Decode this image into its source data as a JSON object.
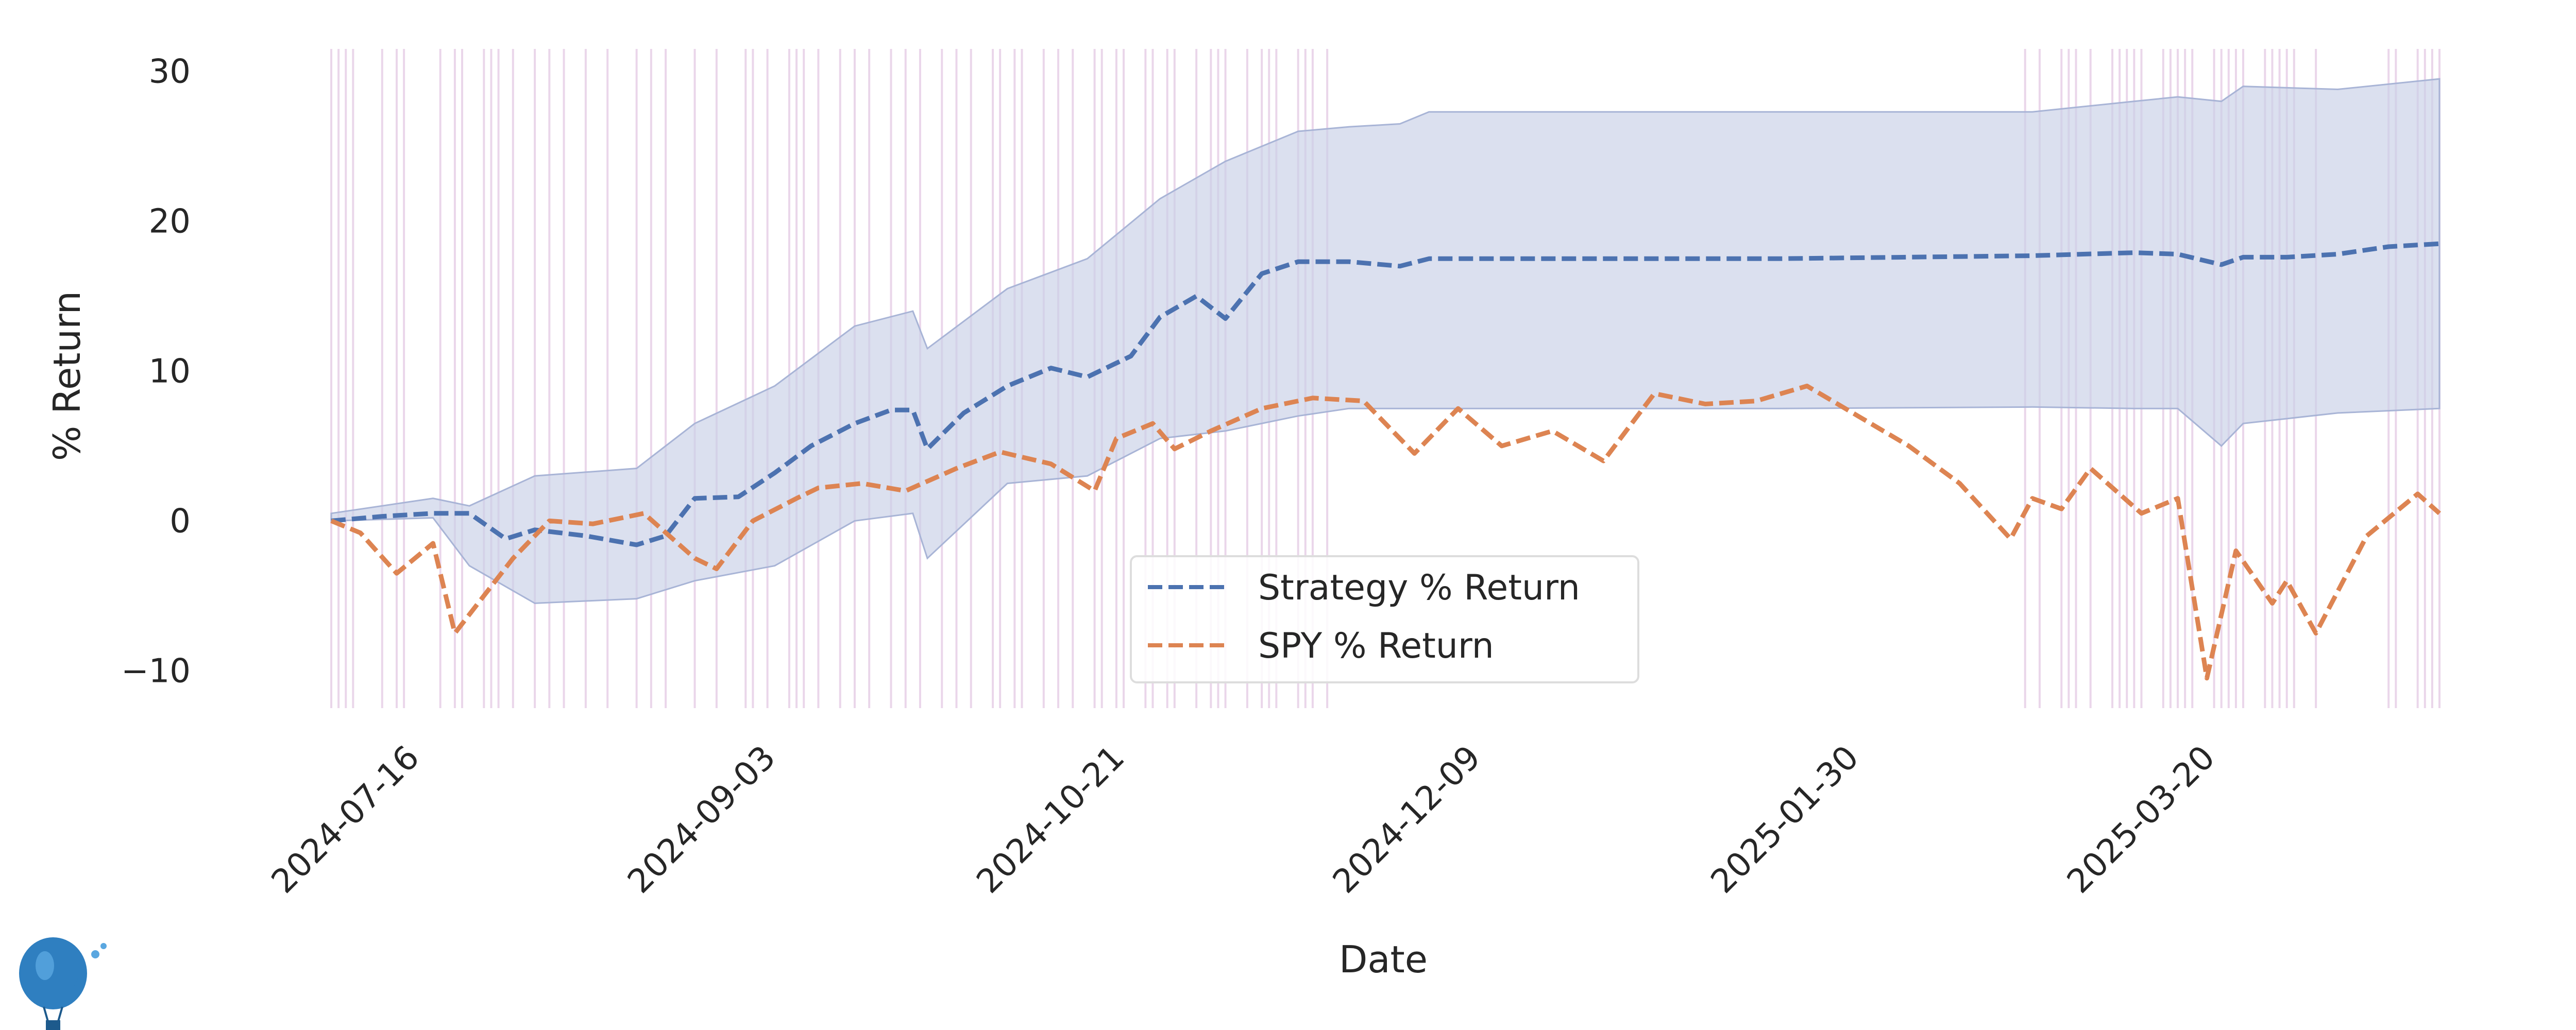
{
  "chart_data": {
    "type": "line",
    "title": "",
    "xlabel": "Date",
    "ylabel": "% Return",
    "x_tick_labels": [
      "2024-07-16",
      "2024-09-03",
      "2024-10-21",
      "2024-12-09",
      "2025-01-30",
      "2025-03-20"
    ],
    "y_tick_labels": [
      "30",
      "20",
      "10",
      "0",
      "−10"
    ],
    "y_ticks": [
      30,
      20,
      10,
      0,
      -10
    ],
    "ylim": [
      -12.5,
      31.5
    ],
    "xlim": [
      "2024-07-15",
      "2025-05-01"
    ],
    "grid": false,
    "legend_position": "bottom-center",
    "series": [
      {
        "name": "Strategy % Return",
        "color": "#4c72b0",
        "style": "dashed",
        "x": [
          "2024-07-15",
          "2024-07-22",
          "2024-07-29",
          "2024-08-03",
          "2024-08-08",
          "2024-08-12",
          "2024-08-19",
          "2024-08-26",
          "2024-08-30",
          "2024-09-03",
          "2024-09-09",
          "2024-09-14",
          "2024-09-19",
          "2024-09-25",
          "2024-09-30",
          "2024-10-03",
          "2024-10-05",
          "2024-10-10",
          "2024-10-16",
          "2024-10-22",
          "2024-10-27",
          "2024-11-02",
          "2024-11-06",
          "2024-11-11",
          "2024-11-15",
          "2024-11-20",
          "2024-11-25",
          "2024-12-02",
          "2024-12-09",
          "2024-12-13",
          "2025-01-30",
          "2025-03-06",
          "2025-03-13",
          "2025-03-20",
          "2025-03-26",
          "2025-04-01",
          "2025-04-04",
          "2025-04-10",
          "2025-04-17",
          "2025-04-24",
          "2025-05-01"
        ],
        "values": [
          0.0,
          0.3,
          0.5,
          0.5,
          -1.2,
          -0.6,
          -1.0,
          -1.6,
          -1.0,
          1.5,
          1.6,
          3.2,
          5.0,
          6.5,
          7.4,
          7.4,
          4.8,
          7.2,
          9.0,
          10.2,
          9.6,
          11.0,
          13.6,
          15.0,
          13.5,
          16.5,
          17.3,
          17.3,
          17.0,
          17.5,
          17.5,
          17.7,
          17.8,
          17.9,
          17.8,
          17.1,
          17.6,
          17.6,
          17.8,
          18.3,
          18.5
        ]
      },
      {
        "name": "SPY % Return",
        "color": "#dd8452",
        "style": "dashed",
        "x": [
          "2024-07-15",
          "2024-07-19",
          "2024-07-24",
          "2024-07-29",
          "2024-08-01",
          "2024-08-05",
          "2024-08-09",
          "2024-08-14",
          "2024-08-20",
          "2024-08-27",
          "2024-09-03",
          "2024-09-06",
          "2024-09-11",
          "2024-09-17",
          "2024-09-20",
          "2024-09-26",
          "2024-10-02",
          "2024-10-09",
          "2024-10-15",
          "2024-10-22",
          "2024-10-28",
          "2024-10-31",
          "2024-11-05",
          "2024-11-08",
          "2024-11-13",
          "2024-11-20",
          "2024-11-27",
          "2024-12-04",
          "2024-12-11",
          "2024-12-17",
          "2024-12-23",
          "2024-12-30",
          "2025-01-06",
          "2025-01-13",
          "2025-01-20",
          "2025-01-27",
          "2025-02-03",
          "2025-02-10",
          "2025-02-17",
          "2025-02-24",
          "2025-03-03",
          "2025-03-06",
          "2025-03-10",
          "2025-03-14",
          "2025-03-21",
          "2025-03-26",
          "2025-03-30",
          "2025-04-03",
          "2025-04-08",
          "2025-04-10",
          "2025-04-14",
          "2025-04-21",
          "2025-04-28",
          "2025-05-01"
        ],
        "values": [
          0.0,
          -0.8,
          -3.5,
          -1.5,
          -7.5,
          -5.0,
          -2.5,
          0.0,
          -0.2,
          0.5,
          -2.5,
          -3.2,
          0.0,
          1.5,
          2.2,
          2.5,
          2.0,
          3.5,
          4.6,
          3.8,
          2.0,
          5.5,
          6.5,
          4.8,
          6.0,
          7.5,
          8.2,
          8.0,
          4.5,
          7.5,
          5.0,
          6.0,
          4.0,
          8.5,
          7.8,
          8.0,
          9.0,
          7.0,
          5.0,
          2.5,
          -1.2,
          1.5,
          0.8,
          3.5,
          0.5,
          1.5,
          -10.5,
          -2.0,
          -5.5,
          -4.0,
          -7.5,
          -1.0,
          1.8,
          0.5
        ]
      }
    ],
    "band": {
      "color": "#c8d0e6",
      "x": [
        "2024-07-15",
        "2024-07-29",
        "2024-08-03",
        "2024-08-12",
        "2024-08-26",
        "2024-09-03",
        "2024-09-14",
        "2024-09-25",
        "2024-10-03",
        "2024-10-05",
        "2024-10-16",
        "2024-10-27",
        "2024-11-06",
        "2024-11-15",
        "2024-11-25",
        "2024-12-02",
        "2024-12-09",
        "2024-12-13",
        "2025-01-30",
        "2025-03-06",
        "2025-03-20",
        "2025-03-26",
        "2025-04-01",
        "2025-04-04",
        "2025-04-17",
        "2025-05-01"
      ],
      "upper": [
        0.5,
        1.5,
        1.0,
        3.0,
        3.5,
        6.5,
        9.0,
        13.0,
        14.0,
        11.5,
        15.5,
        17.5,
        21.5,
        24.0,
        26.0,
        26.3,
        26.5,
        27.3,
        27.3,
        27.3,
        28.0,
        28.3,
        28.0,
        29.0,
        28.8,
        29.5
      ],
      "lower": [
        0.0,
        0.2,
        -3.0,
        -5.5,
        -5.2,
        -4.0,
        -3.0,
        0.0,
        0.5,
        -2.5,
        2.5,
        3.0,
        5.5,
        6.0,
        7.0,
        7.5,
        7.5,
        7.5,
        7.5,
        7.6,
        7.5,
        7.5,
        5.0,
        6.5,
        7.2,
        7.5
      ]
    },
    "highlight_dates": [
      "2024-07-15",
      "2024-07-16",
      "2024-07-17",
      "2024-07-18",
      "2024-07-22",
      "2024-07-24",
      "2024-07-25",
      "2024-07-30",
      "2024-08-01",
      "2024-08-02",
      "2024-08-05",
      "2024-08-06",
      "2024-08-07",
      "2024-08-09",
      "2024-08-12",
      "2024-08-14",
      "2024-08-16",
      "2024-08-19",
      "2024-08-22",
      "2024-08-26",
      "2024-08-28",
      "2024-08-30",
      "2024-09-03",
      "2024-09-06",
      "2024-09-10",
      "2024-09-11",
      "2024-09-13",
      "2024-09-16",
      "2024-09-17",
      "2024-09-18",
      "2024-09-20",
      "2024-09-23",
      "2024-09-25",
      "2024-09-27",
      "2024-09-30",
      "2024-10-02",
      "2024-10-04",
      "2024-10-07",
      "2024-10-09",
      "2024-10-11",
      "2024-10-14",
      "2024-10-15",
      "2024-10-17",
      "2024-10-18",
      "2024-10-21",
      "2024-10-23",
      "2024-10-25",
      "2024-10-28",
      "2024-10-29",
      "2024-10-31",
      "2024-11-01",
      "2024-11-04",
      "2024-11-05",
      "2024-11-07",
      "2024-11-08",
      "2024-11-11",
      "2024-11-13",
      "2024-11-14",
      "2024-11-15",
      "2024-11-18",
      "2024-11-20",
      "2024-11-21",
      "2024-11-22",
      "2024-11-25",
      "2024-11-26",
      "2024-11-27",
      "2024-11-29",
      "2025-03-05",
      "2025-03-07",
      "2025-03-10",
      "2025-03-11",
      "2025-03-12",
      "2025-03-14",
      "2025-03-17",
      "2025-03-18",
      "2025-03-19",
      "2025-03-20",
      "2025-03-21",
      "2025-03-24",
      "2025-03-25",
      "2025-03-26",
      "2025-03-27",
      "2025-03-28",
      "2025-03-31",
      "2025-04-01",
      "2025-04-02",
      "2025-04-03",
      "2025-04-04",
      "2025-04-07",
      "2025-04-08",
      "2025-04-09",
      "2025-04-10",
      "2025-04-11",
      "2025-04-14",
      "2025-04-24",
      "2025-04-25",
      "2025-04-28",
      "2025-04-29",
      "2025-04-30",
      "2025-05-01"
    ],
    "highlight_color": "#d8b4d8"
  },
  "watermark": {
    "icon": "hot-air-balloon-logo",
    "color": "#2f7fc0"
  }
}
